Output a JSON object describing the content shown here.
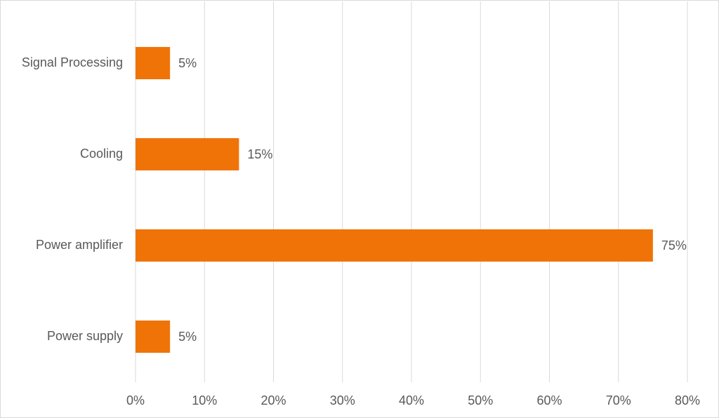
{
  "chart_data": {
    "type": "bar",
    "orientation": "horizontal",
    "categories": [
      "Signal Processing",
      "Cooling",
      "Power amplifier",
      "Power supply"
    ],
    "values": [
      5,
      15,
      75,
      5
    ],
    "value_labels": [
      "5%",
      "15%",
      "75%",
      "5%"
    ],
    "color": "#f07308",
    "xlim": [
      0,
      80
    ],
    "xticks": [
      {
        "value": 0,
        "label": "0%"
      },
      {
        "value": 10,
        "label": "10%"
      },
      {
        "value": 20,
        "label": "20%"
      },
      {
        "value": 30,
        "label": "30%"
      },
      {
        "value": 40,
        "label": "40%"
      },
      {
        "value": 50,
        "label": "50%"
      },
      {
        "value": 60,
        "label": "60%"
      },
      {
        "value": 70,
        "label": "70%"
      },
      {
        "value": 80,
        "label": "80%"
      }
    ],
    "grid": true
  }
}
